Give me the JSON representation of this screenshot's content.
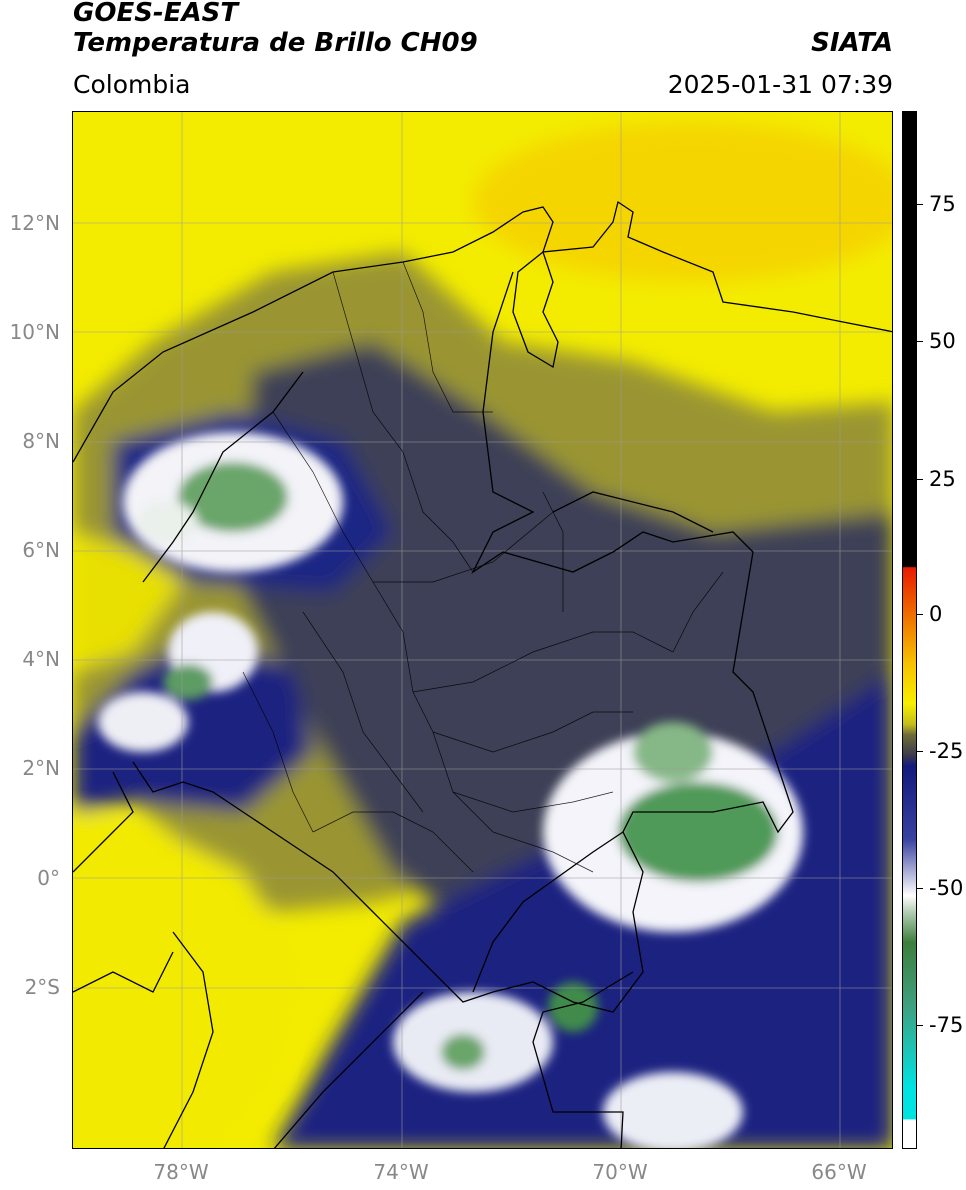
{
  "header": {
    "satellite": "GOES-EAST",
    "product": "Temperatura de Brillo CH09",
    "region": "Colombia",
    "agency": "SIATA",
    "datetime": "2025-01-31 07:39"
  },
  "map": {
    "lat_ticks": [
      "12°N",
      "10°N",
      "8°N",
      "6°N",
      "4°N",
      "2°N",
      "0°",
      "2°S"
    ],
    "lon_ticks": [
      "78°W",
      "74°W",
      "70°W",
      "66°W"
    ],
    "colors": {
      "warm_yellow": "#f5ee00",
      "olive": "#8c8a2c",
      "dark_slate": "#3a3d58",
      "navy": "#161d80",
      "white_cloud": "#f0f0f7",
      "green_core": "#4f9a58"
    }
  },
  "colorbar": {
    "ticks": [
      "75",
      "50",
      "25",
      "0",
      "-25",
      "-50",
      "-75"
    ],
    "colors": {
      "black": "#000000",
      "red": "#e81b00",
      "orange": "#f59a00",
      "yellow": "#f7ef00",
      "olive": "#6e6c38",
      "navy": "#121b7c",
      "white": "#ffffff",
      "green": "#3c7f3c",
      "cyan": "#00e3e3"
    }
  }
}
